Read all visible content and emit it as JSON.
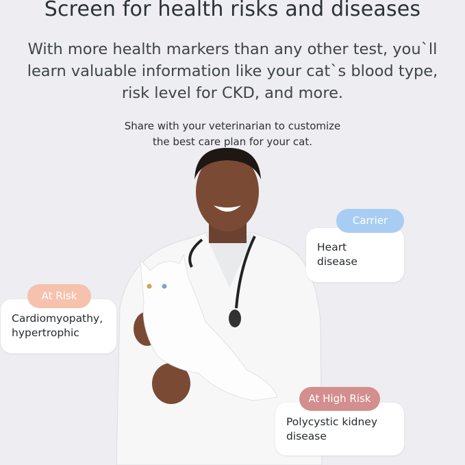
{
  "header": {
    "title": "Screen for health risks and diseases",
    "subtitle_lines": [
      "With more health markers than any other test, you`ll",
      "learn valuable information like your cat`s blood type,",
      "risk level for CKD, and more."
    ],
    "note_lines": [
      "Share with your veterinarian to customize",
      "the best care plan for your cat."
    ]
  },
  "cards": [
    {
      "status": "Carrier",
      "condition_lines": [
        "Heart",
        "disease"
      ],
      "color": "#a8cdf3"
    },
    {
      "status": "At Risk",
      "condition_lines": [
        "Cardiomyopathy,",
        "hypertrophic"
      ],
      "color": "#f6c2ad"
    },
    {
      "status": "At High Risk",
      "condition_lines": [
        "Polycystic kidney",
        "disease"
      ],
      "color": "#d38e8e"
    }
  ],
  "photo": {
    "subject": "veterinarian-holding-white-cat"
  }
}
